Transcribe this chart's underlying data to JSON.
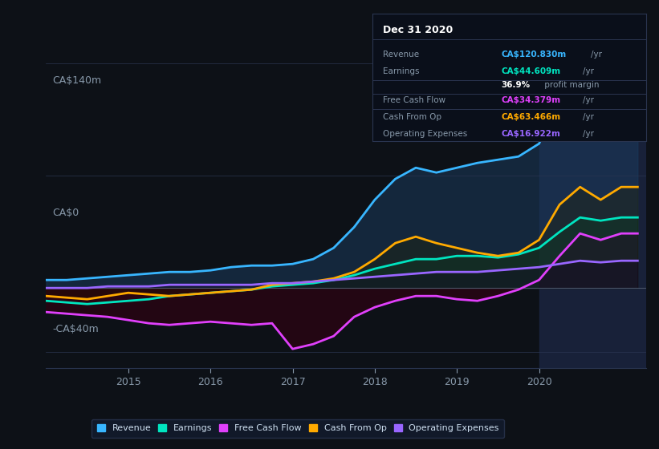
{
  "background_color": "#0d1117",
  "plot_bg_color": "#0d1117",
  "grid_color": "#2a3550",
  "axis_label_color": "#8899aa",
  "ylabel_140": "CA$140m",
  "ylabel_0": "CA$0",
  "ylabel_neg40": "-CA$40m",
  "x_ticks": [
    2015,
    2016,
    2017,
    2018,
    2019,
    2020
  ],
  "x_min": 2014.0,
  "x_max": 2021.3,
  "y_min": -50,
  "y_max": 160,
  "series": {
    "revenue": {
      "color": "#38b6ff",
      "fill_color": "#1a3a5c",
      "label": "Revenue"
    },
    "earnings": {
      "color": "#00e5c0",
      "fill_color": "#003322",
      "label": "Earnings"
    },
    "free_cash_flow": {
      "color": "#e040fb",
      "fill_color": "#3a0a20",
      "label": "Free Cash Flow"
    },
    "cash_from_op": {
      "color": "#ffaa00",
      "fill_color": "#2a2000",
      "label": "Cash From Op"
    },
    "operating_expenses": {
      "color": "#9966ff",
      "fill_color": "#1a1035",
      "label": "Operating Expenses"
    }
  },
  "x_data": [
    2014.0,
    2014.25,
    2014.5,
    2014.75,
    2015.0,
    2015.25,
    2015.5,
    2015.75,
    2016.0,
    2016.25,
    2016.5,
    2016.75,
    2017.0,
    2017.25,
    2017.5,
    2017.75,
    2018.0,
    2018.25,
    2018.5,
    2018.75,
    2019.0,
    2019.25,
    2019.5,
    2019.75,
    2020.0,
    2020.25,
    2020.5,
    2020.75,
    2021.0,
    2021.2
  ],
  "revenue": [
    5,
    5,
    6,
    7,
    8,
    9,
    10,
    10,
    11,
    13,
    14,
    14,
    15,
    18,
    25,
    38,
    55,
    68,
    75,
    72,
    75,
    78,
    80,
    82,
    90,
    115,
    135,
    125,
    121,
    120
  ],
  "earnings": [
    -8,
    -9,
    -10,
    -9,
    -8,
    -7,
    -5,
    -4,
    -3,
    -2,
    -1,
    1,
    2,
    3,
    5,
    8,
    12,
    15,
    18,
    18,
    20,
    20,
    19,
    21,
    25,
    35,
    44,
    42,
    44,
    44
  ],
  "free_cash_flow": [
    -15,
    -16,
    -17,
    -18,
    -20,
    -22,
    -23,
    -22,
    -21,
    -22,
    -23,
    -22,
    -38,
    -35,
    -30,
    -18,
    -12,
    -8,
    -5,
    -5,
    -7,
    -8,
    -5,
    -1,
    5,
    20,
    34,
    30,
    34,
    34
  ],
  "cash_from_op": [
    -5,
    -6,
    -7,
    -5,
    -3,
    -4,
    -5,
    -4,
    -3,
    -2,
    -1,
    2,
    3,
    4,
    6,
    10,
    18,
    28,
    32,
    28,
    25,
    22,
    20,
    22,
    30,
    52,
    63,
    55,
    63,
    63
  ],
  "operating_expenses": [
    0,
    0,
    0,
    1,
    1,
    1,
    2,
    2,
    2,
    2,
    2,
    3,
    3,
    4,
    5,
    6,
    7,
    8,
    9,
    10,
    10,
    10,
    11,
    12,
    13,
    15,
    17,
    16,
    17,
    17
  ],
  "highlight_x": 2020.0,
  "tooltip": {
    "title": "Dec 31 2020",
    "rows": [
      {
        "label": "Revenue",
        "value": "CA$120.830m",
        "unit": "/yr",
        "color": "#38b6ff"
      },
      {
        "label": "Earnings",
        "value": "CA$44.609m",
        "unit": "/yr",
        "color": "#00e5c0"
      },
      {
        "label": "",
        "value": "36.9%",
        "unit": " profit margin",
        "color": "#ffffff"
      },
      {
        "label": "Free Cash Flow",
        "value": "CA$34.379m",
        "unit": "/yr",
        "color": "#e040fb"
      },
      {
        "label": "Cash From Op",
        "value": "CA$63.466m",
        "unit": "/yr",
        "color": "#ffaa00"
      },
      {
        "label": "Operating Expenses",
        "value": "CA$16.922m",
        "unit": "/yr",
        "color": "#9966ff"
      }
    ],
    "divider_after": [
      0,
      2,
      3,
      4,
      5
    ]
  },
  "legend_items": [
    {
      "label": "Revenue",
      "color": "#38b6ff"
    },
    {
      "label": "Earnings",
      "color": "#00e5c0"
    },
    {
      "label": "Free Cash Flow",
      "color": "#e040fb"
    },
    {
      "label": "Cash From Op",
      "color": "#ffaa00"
    },
    {
      "label": "Operating Expenses",
      "color": "#9966ff"
    }
  ]
}
